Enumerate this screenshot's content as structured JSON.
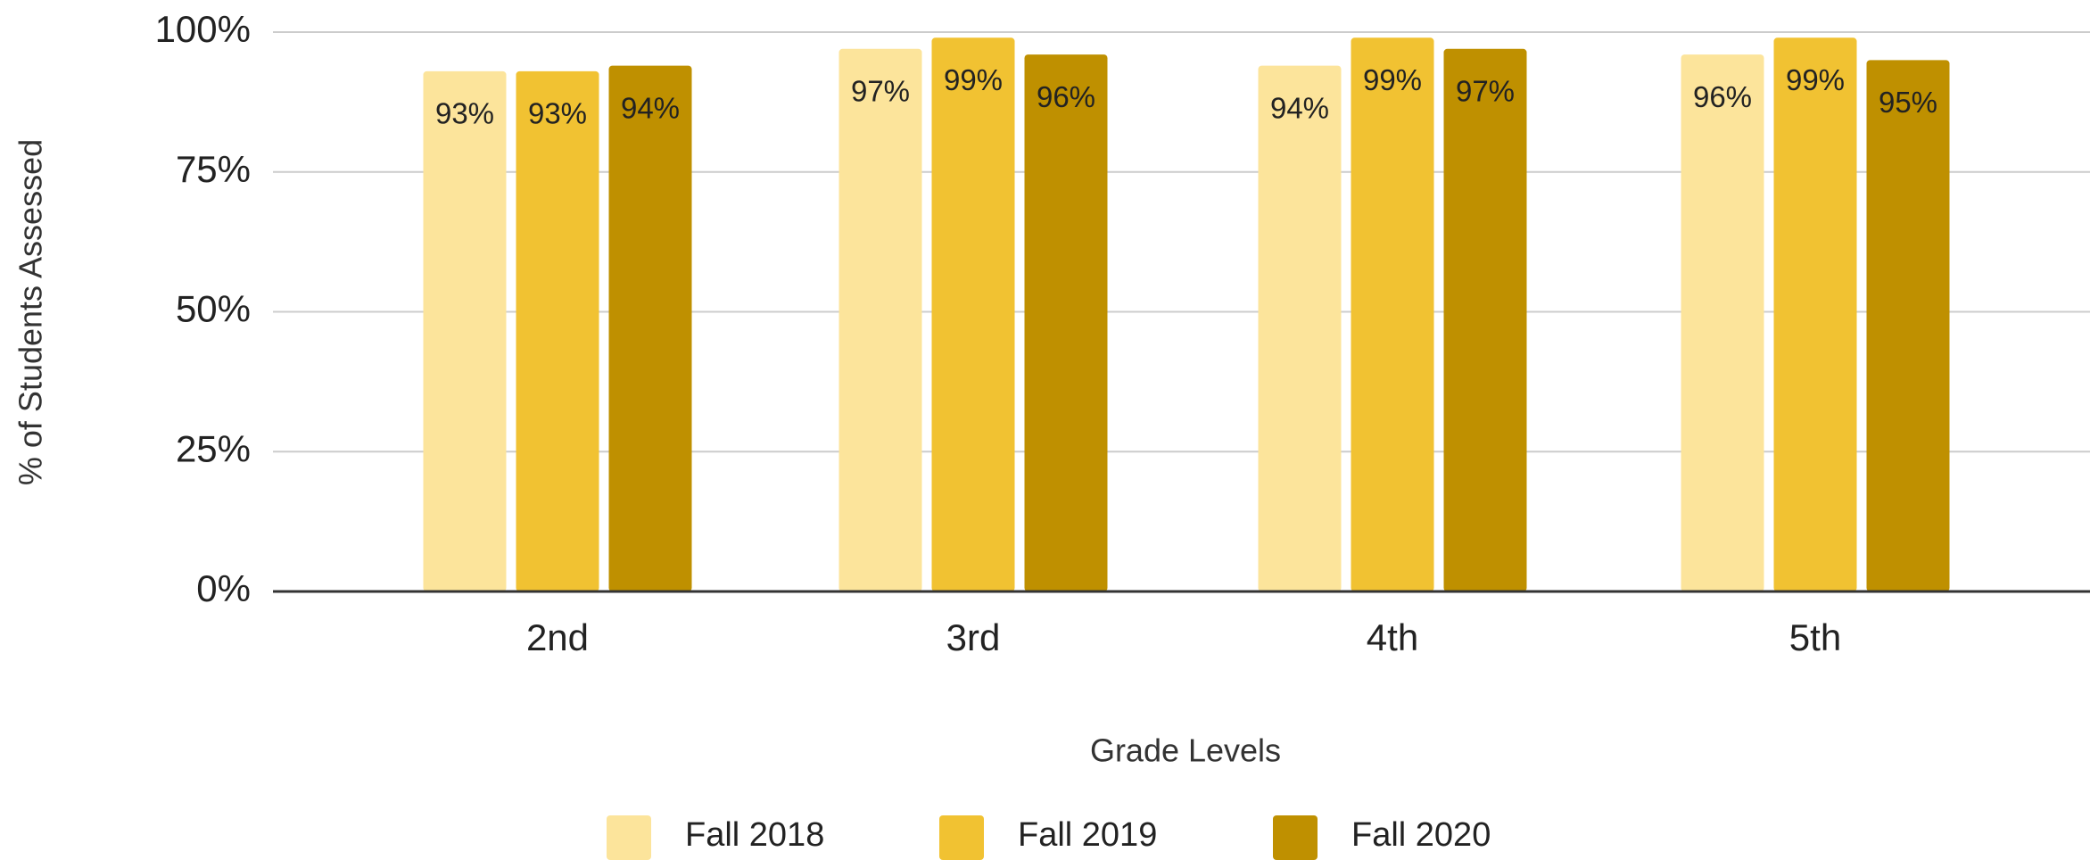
{
  "chart_data": {
    "type": "bar",
    "x_label": "Grade Levels",
    "y_label": "% of Students Assessed",
    "categories": [
      "2nd",
      "3rd",
      "4th",
      "5th"
    ],
    "series": [
      {
        "name": "Fall 2018",
        "color": "#fce49b",
        "values": [
          93,
          97,
          94,
          96
        ],
        "value_labels": [
          "93%",
          "97%",
          "94%",
          "96%"
        ]
      },
      {
        "name": "Fall 2019",
        "color": "#f1c232",
        "values": [
          93,
          99,
          99,
          99
        ],
        "value_labels": [
          "93%",
          "99%",
          "99%",
          "99%"
        ]
      },
      {
        "name": "Fall 2020",
        "color": "#bf9000",
        "values": [
          94,
          96,
          97,
          95
        ],
        "value_labels": [
          "94%",
          "96%",
          "97%",
          "95%"
        ]
      }
    ],
    "ylim": [
      0,
      100
    ],
    "yticks": [
      {
        "value": 0,
        "label": "0%"
      },
      {
        "value": 25,
        "label": "25%"
      },
      {
        "value": 50,
        "label": "50%"
      },
      {
        "value": 75,
        "label": "75%"
      },
      {
        "value": 100,
        "label": "100%"
      }
    ],
    "grid": true,
    "legend": "bottom"
  }
}
